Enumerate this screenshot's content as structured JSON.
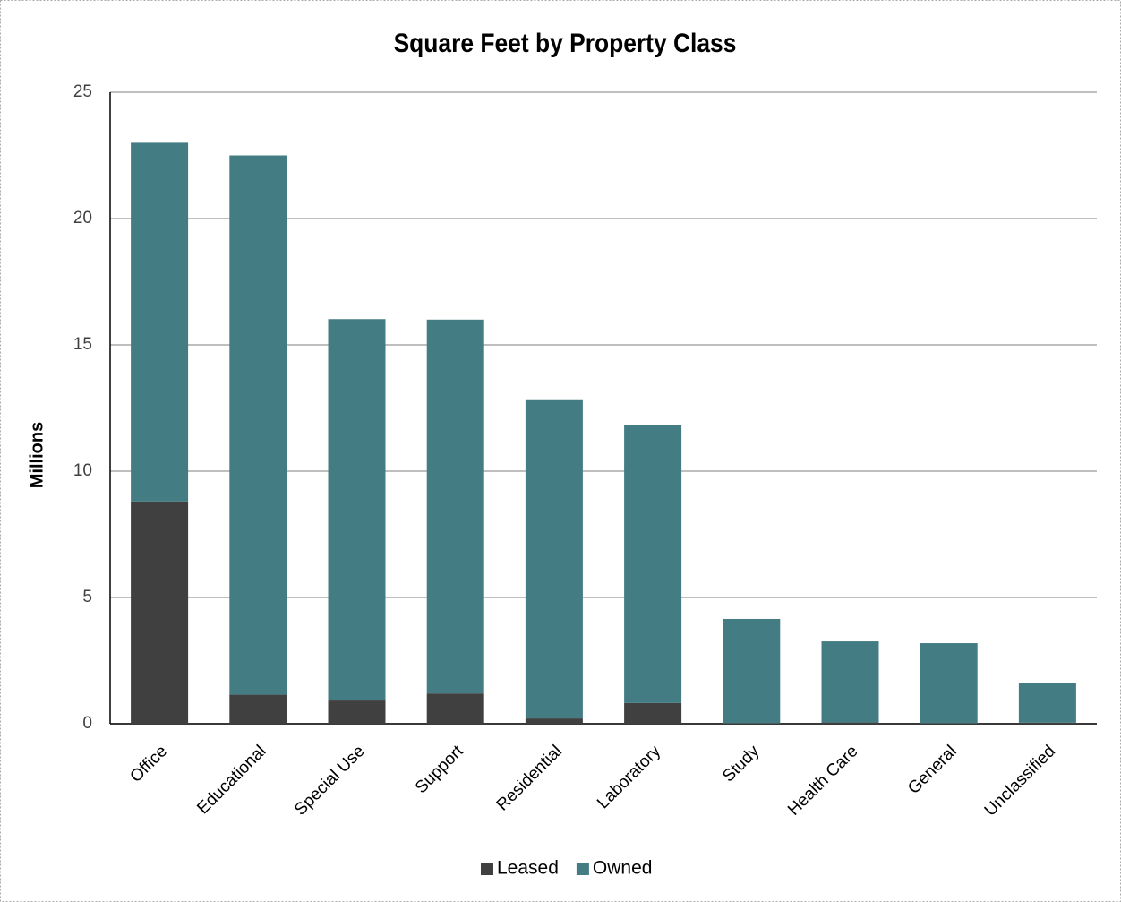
{
  "chart_data": {
    "type": "stacked_bar",
    "title": "Square Feet by Property Class",
    "y_label": "Millions",
    "categories": [
      "Office",
      "Educational",
      "Special Use",
      "Support",
      "Residential",
      "Laboratory",
      "Study",
      "Health Care",
      "General",
      "Unclassified"
    ],
    "series": [
      {
        "name": "Leased",
        "color": "#404040",
        "values": [
          8.8,
          1.15,
          0.92,
          1.2,
          0.21,
          0.82,
          0.02,
          0.05,
          0.02,
          0.04
        ]
      },
      {
        "name": "Owned",
        "color": "#437c83",
        "values": [
          14.2,
          21.35,
          15.1,
          14.8,
          12.6,
          11.0,
          4.13,
          3.21,
          3.17,
          1.56
        ]
      }
    ],
    "ylim": [
      0,
      25
    ],
    "yticks": [
      0,
      5,
      10,
      15,
      20,
      25
    ],
    "grid": true,
    "legend": "bottom"
  }
}
